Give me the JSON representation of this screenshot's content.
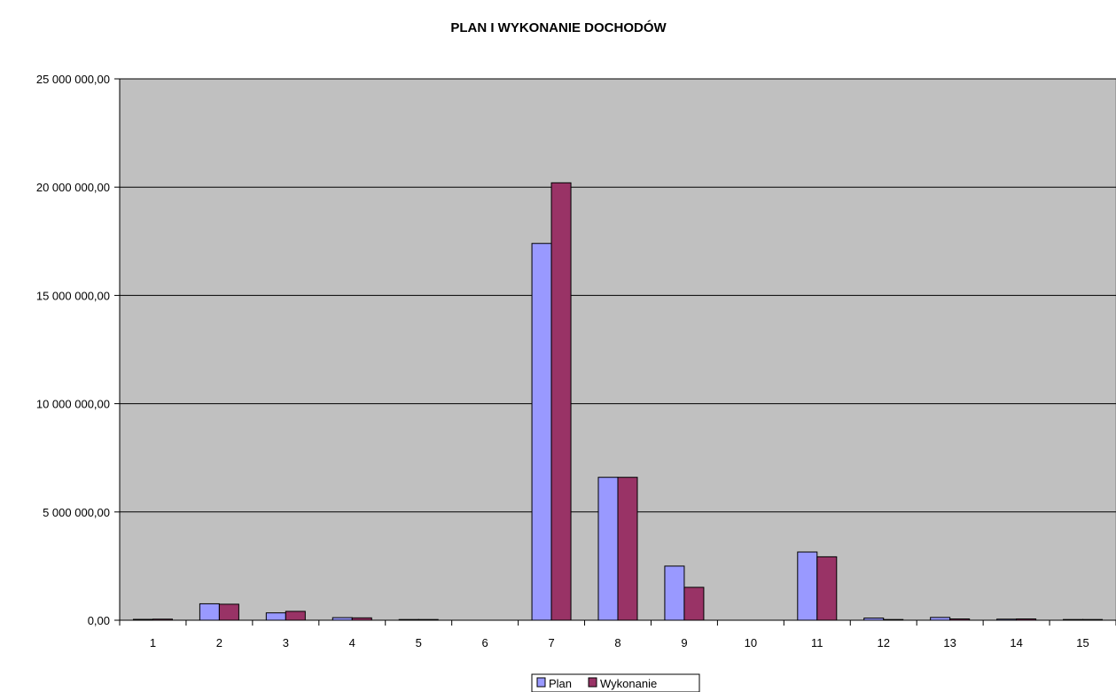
{
  "chart_data": {
    "type": "bar",
    "title": "PLAN I WYKONANIE DOCHODÓW",
    "xlabel": "",
    "ylabel": "",
    "categories": [
      "1",
      "2",
      "3",
      "4",
      "5",
      "6",
      "7",
      "8",
      "9",
      "10",
      "11",
      "12",
      "13",
      "14",
      "15"
    ],
    "series": [
      {
        "name": "Plan",
        "color": "#9999ff",
        "values": [
          40000,
          760000,
          340000,
          120000,
          20000,
          0,
          17400000,
          6600000,
          2500000,
          0,
          3150000,
          100000,
          130000,
          50000,
          10000
        ]
      },
      {
        "name": "Wykonanie",
        "color": "#993366",
        "values": [
          50000,
          740000,
          410000,
          110000,
          20000,
          0,
          20200000,
          6600000,
          1520000,
          0,
          2930000,
          30000,
          60000,
          60000,
          5000
        ]
      }
    ],
    "ylim": [
      0,
      25000000
    ],
    "yticks": [
      0,
      5000000,
      10000000,
      15000000,
      20000000,
      25000000
    ],
    "ytick_labels": [
      "0,00",
      "5 000 000,00",
      "10 000 000,00",
      "15 000 000,00",
      "20 000 000,00",
      "25 000 000,00"
    ],
    "plot_background": "#c0c0c0",
    "grid": true,
    "legend_position": "bottom"
  }
}
